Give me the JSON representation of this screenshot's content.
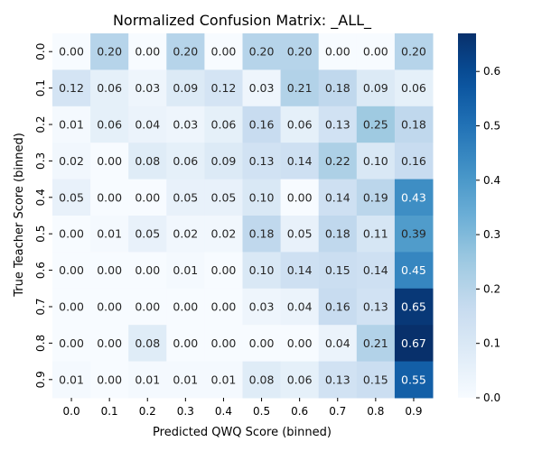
{
  "chart_data": {
    "type": "heatmap",
    "title": "Normalized Confusion Matrix: _ALL_",
    "xlabel": "Predicted QWQ Score (binned)",
    "ylabel": "True Teacher Score (binned)",
    "x_categories": [
      "0.0",
      "0.1",
      "0.2",
      "0.3",
      "0.4",
      "0.5",
      "0.6",
      "0.7",
      "0.8",
      "0.9"
    ],
    "y_categories": [
      "0.0",
      "0.1",
      "0.2",
      "0.3",
      "0.4",
      "0.5",
      "0.6",
      "0.7",
      "0.8",
      "0.9"
    ],
    "values": [
      [
        0.0,
        0.2,
        0.0,
        0.2,
        0.0,
        0.2,
        0.2,
        0.0,
        0.0,
        0.2
      ],
      [
        0.12,
        0.06,
        0.03,
        0.09,
        0.12,
        0.03,
        0.21,
        0.18,
        0.09,
        0.06
      ],
      [
        0.01,
        0.06,
        0.04,
        0.03,
        0.06,
        0.16,
        0.06,
        0.13,
        0.25,
        0.18
      ],
      [
        0.02,
        0.0,
        0.08,
        0.06,
        0.09,
        0.13,
        0.14,
        0.22,
        0.1,
        0.16
      ],
      [
        0.05,
        0.0,
        0.0,
        0.05,
        0.05,
        0.1,
        0.0,
        0.14,
        0.19,
        0.43
      ],
      [
        0.0,
        0.01,
        0.05,
        0.02,
        0.02,
        0.18,
        0.05,
        0.18,
        0.11,
        0.39
      ],
      [
        0.0,
        0.0,
        0.0,
        0.01,
        0.0,
        0.1,
        0.14,
        0.15,
        0.14,
        0.45
      ],
      [
        0.0,
        0.0,
        0.0,
        0.0,
        0.0,
        0.03,
        0.04,
        0.16,
        0.13,
        0.65
      ],
      [
        0.0,
        0.0,
        0.08,
        0.0,
        0.0,
        0.0,
        0.0,
        0.04,
        0.21,
        0.67
      ],
      [
        0.01,
        0.0,
        0.01,
        0.01,
        0.01,
        0.08,
        0.06,
        0.13,
        0.15,
        0.55
      ]
    ],
    "colorbar": {
      "min": 0.0,
      "max": 0.67,
      "ticks": [
        "0.0",
        "0.1",
        "0.2",
        "0.3",
        "0.4",
        "0.5",
        "0.6"
      ]
    },
    "colormap": "Blues",
    "grid": false
  }
}
